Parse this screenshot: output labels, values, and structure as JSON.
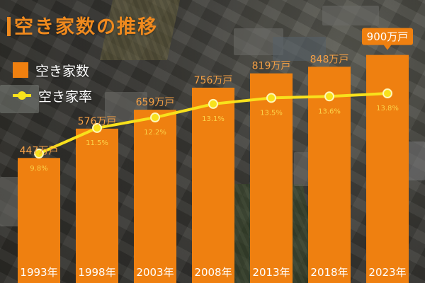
{
  "chart_data": {
    "type": "bar",
    "title": "空き家数の推移",
    "legend": [
      "空き家数",
      "空き家率"
    ],
    "categories": [
      "1993年",
      "1998年",
      "2003年",
      "2008年",
      "2013年",
      "2018年",
      "2023年"
    ],
    "series": [
      {
        "name": "空き家数",
        "type": "bar",
        "unit": "万戸",
        "values": [
          447,
          576,
          659,
          756,
          819,
          848,
          900
        ],
        "labels": [
          "447万戸",
          "576万戸",
          "659万戸",
          "756万戸",
          "819万戸",
          "848万戸",
          "900万戸"
        ]
      },
      {
        "name": "空き家率",
        "type": "line",
        "unit": "%",
        "values": [
          9.8,
          11.5,
          12.2,
          13.1,
          13.5,
          13.6,
          13.8
        ],
        "labels": [
          "9.8%",
          "11.5%",
          "12.2%",
          "13.1%",
          "13.5%",
          "13.6%",
          "13.8%"
        ]
      }
    ],
    "highlight": {
      "category": "2023年",
      "style": "callout"
    },
    "bar_ylim": [
      0,
      1000
    ],
    "rate_ylim": [
      0,
      16
    ],
    "grid": false,
    "legend_position": "top-left",
    "colors": {
      "bar": "#ef8010",
      "line": "#f8e11c",
      "title": "#f08a1e"
    }
  }
}
